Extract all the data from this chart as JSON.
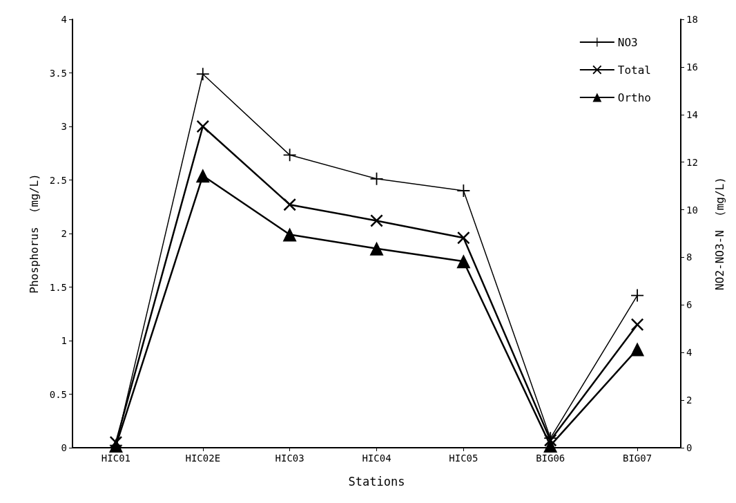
{
  "chart_data": {
    "type": "line",
    "xlabel": "Stations",
    "ylabel": "Phosphorus  (mg/L)",
    "y2label": "NO2-NO3-N  (mg/L)",
    "categories": [
      "HIC01",
      "HIC02E",
      "HIC03",
      "HIC04",
      "HIC05",
      "BIG06",
      "BIG07"
    ],
    "series": [
      {
        "name": "NO3",
        "color": "#000000",
        "axis": "y2",
        "marker": "plus",
        "values": [
          0.1,
          15.7,
          12.3,
          11.3,
          10.8,
          0.4,
          6.4
        ]
      },
      {
        "name": "Total",
        "color": "#000000",
        "marker": "cross",
        "values": [
          0.05,
          3.0,
          2.27,
          2.12,
          1.96,
          0.07,
          1.15
        ]
      },
      {
        "name": "Ortho",
        "color": "#000000",
        "marker": "triangle",
        "values": [
          0.02,
          2.54,
          1.99,
          1.86,
          1.74,
          0.02,
          0.92
        ]
      }
    ],
    "ylim": [
      0,
      4
    ],
    "yticks": [
      0,
      0.5,
      1,
      1.5,
      2,
      2.5,
      3,
      3.5,
      4
    ],
    "y2lim": [
      0,
      18
    ],
    "y2ticks": [
      0,
      2,
      4,
      6,
      8,
      10,
      12,
      14,
      16,
      18
    ],
    "grid": false,
    "legend": "top right",
    "line_style": "solid"
  }
}
